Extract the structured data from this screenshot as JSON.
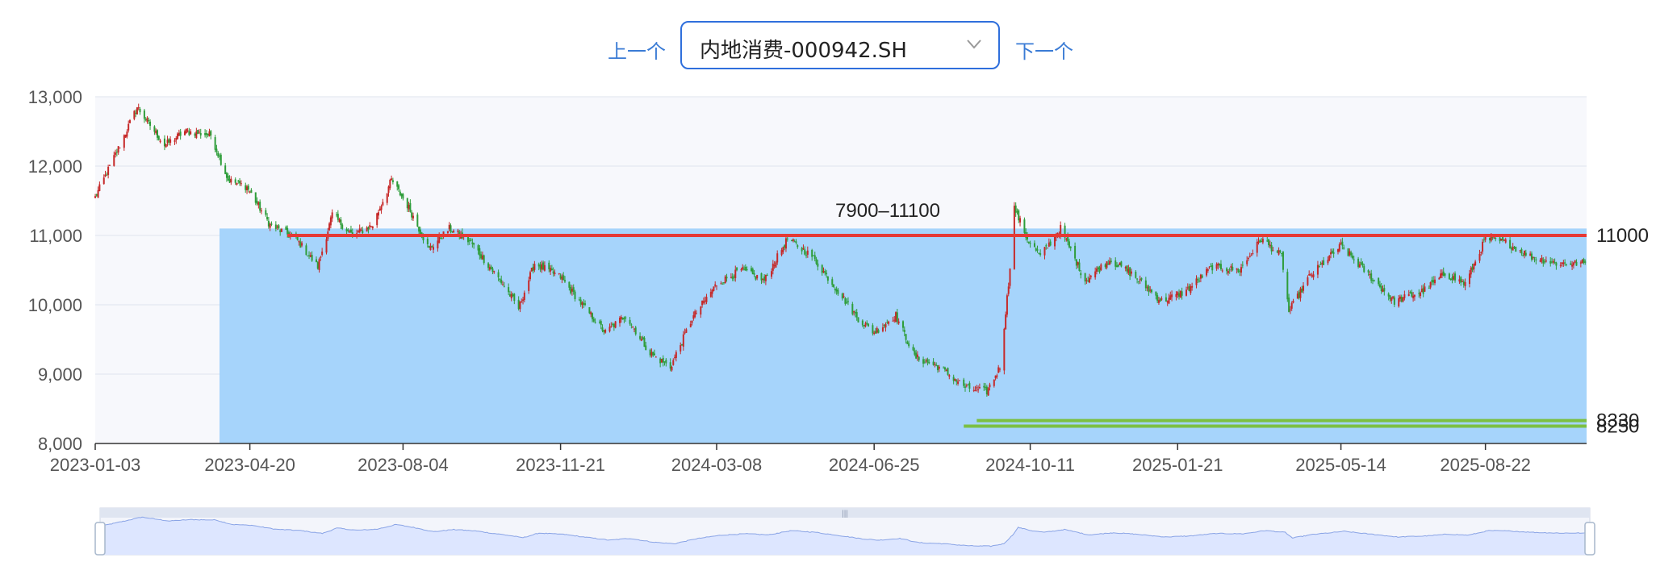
{
  "toolbar": {
    "prev_label": "上一个",
    "next_label": "下一个",
    "selected_index": "内地消费-000942.SH"
  },
  "colors": {
    "up": "#c62828",
    "down": "#2e9d3a",
    "zone_fill": "#a6d4fb",
    "resistance_line": "#e53935",
    "support_line": "#7bc043",
    "plot_bg": "#f7f8fc",
    "grid": "#dfe3ee",
    "slider_fill": "#dde6ff",
    "slider_line": "#8aa4e6",
    "accent": "#2f6fdc"
  },
  "chart_data": {
    "type": "candlestick",
    "title": "",
    "xlabel": "",
    "ylabel": "",
    "x_range": [
      "2023-01-03",
      "2025-10-31"
    ],
    "ylim": [
      8000,
      13000
    ],
    "y_ticks": [
      "8,000",
      "9,000",
      "10,000",
      "11,000",
      "12,000",
      "13,000"
    ],
    "x_ticks": [
      "2023-01-03",
      "2023-04-20",
      "2023-08-04",
      "2023-11-21",
      "2024-03-08",
      "2024-06-25",
      "2024-10-11",
      "2025-01-21",
      "2025-05-14",
      "2025-08-22"
    ],
    "grid": true,
    "price_path": [
      [
        "2023-01-03",
        11550
      ],
      [
        "2023-01-20",
        12300
      ],
      [
        "2023-02-01",
        12850
      ],
      [
        "2023-02-20",
        12300
      ],
      [
        "2023-03-06",
        12500
      ],
      [
        "2023-03-24",
        12450
      ],
      [
        "2023-04-05",
        11800
      ],
      [
        "2023-04-18",
        11700
      ],
      [
        "2023-05-04",
        11150
      ],
      [
        "2023-05-22",
        10950
      ],
      [
        "2023-06-06",
        10550
      ],
      [
        "2023-06-16",
        11300
      ],
      [
        "2023-06-30",
        11000
      ],
      [
        "2023-07-14",
        11150
      ],
      [
        "2023-07-27",
        11800
      ],
      [
        "2023-08-08",
        11400
      ],
      [
        "2023-08-22",
        10800
      ],
      [
        "2023-09-05",
        11100
      ],
      [
        "2023-09-20",
        10900
      ],
      [
        "2023-10-12",
        10300
      ],
      [
        "2023-10-23",
        9950
      ],
      [
        "2023-11-03",
        10600
      ],
      [
        "2023-11-21",
        10400
      ],
      [
        "2023-12-06",
        10000
      ],
      [
        "2023-12-22",
        9600
      ],
      [
        "2024-01-05",
        9850
      ],
      [
        "2024-01-22",
        9300
      ],
      [
        "2024-02-05",
        9100
      ],
      [
        "2024-02-20",
        9800
      ],
      [
        "2024-03-08",
        10300
      ],
      [
        "2024-03-25",
        10500
      ],
      [
        "2024-04-10",
        10350
      ],
      [
        "2024-04-26",
        10950
      ],
      [
        "2024-05-13",
        10700
      ],
      [
        "2024-05-31",
        10200
      ],
      [
        "2024-06-14",
        9800
      ],
      [
        "2024-06-25",
        9600
      ],
      [
        "2024-07-10",
        9850
      ],
      [
        "2024-07-23",
        9250
      ],
      [
        "2024-08-09",
        9100
      ],
      [
        "2024-08-28",
        8800
      ],
      [
        "2024-09-11",
        8750
      ],
      [
        "2024-09-20",
        9100
      ],
      [
        "2024-09-26",
        10300
      ],
      [
        "2024-09-30",
        11400
      ],
      [
        "2024-10-09",
        10950
      ],
      [
        "2024-10-18",
        10700
      ],
      [
        "2024-11-01",
        11100
      ],
      [
        "2024-11-18",
        10350
      ],
      [
        "2024-12-05",
        10650
      ],
      [
        "2024-12-20",
        10450
      ],
      [
        "2025-01-10",
        10050
      ],
      [
        "2025-01-27",
        10200
      ],
      [
        "2025-02-14",
        10550
      ],
      [
        "2025-03-05",
        10500
      ],
      [
        "2025-03-20",
        10950
      ],
      [
        "2025-04-03",
        10700
      ],
      [
        "2025-04-08",
        9900
      ],
      [
        "2025-04-22",
        10400
      ],
      [
        "2025-05-14",
        10850
      ],
      [
        "2025-05-30",
        10500
      ],
      [
        "2025-06-20",
        10050
      ],
      [
        "2025-07-10",
        10200
      ],
      [
        "2025-07-25",
        10450
      ],
      [
        "2025-08-08",
        10300
      ],
      [
        "2025-08-22",
        10950
      ],
      [
        "2025-09-05",
        10900
      ],
      [
        "2025-09-22",
        10700
      ],
      [
        "2025-10-10",
        10600
      ],
      [
        "2025-10-31",
        10600
      ]
    ],
    "annotations": {
      "zone_label": "7900–11100",
      "zone_low": 7900,
      "zone_high": 11100,
      "zone_start": "2023-03-30",
      "resistance_label": "11000",
      "resistance_value": 11000,
      "resistance_start": "2023-05-16",
      "support_labels": [
        "8330",
        "8250"
      ],
      "support_values": [
        8330,
        8250
      ],
      "support_starts": [
        "2024-09-04",
        "2024-08-26"
      ]
    },
    "datazoom": {
      "start": 0,
      "end": 100
    }
  }
}
